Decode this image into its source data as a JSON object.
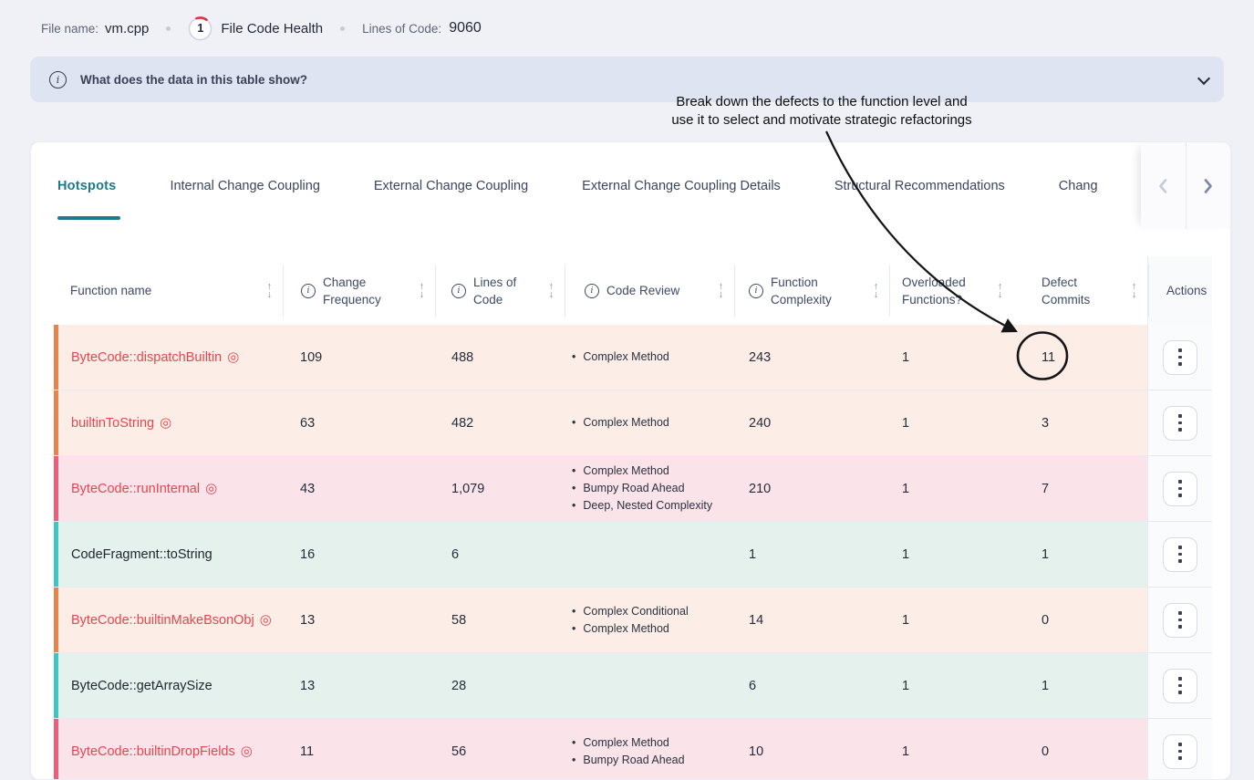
{
  "file_header": {
    "file_name_label": "File name:",
    "file_name": "vm.cpp",
    "health_score": "1",
    "health_label": "File Code Health",
    "loc_label": "Lines of Code:",
    "loc_value": "9060"
  },
  "banner": {
    "question": "What does the data in this table show?"
  },
  "annotation": {
    "line1": "Break down the defects to the function level and",
    "line2": "use it to select and motivate strategic refactorings",
    "circled_value": "11"
  },
  "tabs": {
    "items": [
      {
        "label": "Hotspots",
        "active": true
      },
      {
        "label": "Internal Change Coupling",
        "active": false
      },
      {
        "label": "External Change Coupling",
        "active": false
      },
      {
        "label": "External Change Coupling Details",
        "active": false
      },
      {
        "label": "Structural Recommendations",
        "active": false
      },
      {
        "label": "Chang",
        "active": false
      }
    ]
  },
  "table": {
    "columns": [
      {
        "label": "Function name",
        "info": false,
        "sort": true,
        "class": "hc-name"
      },
      {
        "label": "Change Frequency",
        "info": true,
        "sort": true,
        "class": "hc-cf",
        "label_width": 80
      },
      {
        "label": "Lines of Code",
        "info": true,
        "sort": true,
        "class": "hc-loc",
        "label_width": 62
      },
      {
        "label": "Code Review",
        "info": true,
        "sort": true,
        "class": "hc-cr"
      },
      {
        "label": "Function Complexity",
        "info": true,
        "sort": true,
        "class": "hc-fc",
        "label_width": 92
      },
      {
        "label": "Overloaded Functions?",
        "info": false,
        "sort": true,
        "class": "hc-of",
        "label_width": 92
      },
      {
        "label": "Defect Commits",
        "info": false,
        "sort": true,
        "class": "hc-dc",
        "label_width": 70
      },
      {
        "label": "Actions",
        "info": false,
        "sort": false,
        "class": "hc-act"
      }
    ],
    "rows": [
      {
        "name": "ByteCode::dispatchBuiltin",
        "target": true,
        "severity": "orange",
        "change_frequency": "109",
        "lines_of_code": "488",
        "code_review": [
          "Complex Method"
        ],
        "function_complexity": "243",
        "overloaded_functions": "1",
        "defect_commits": "11"
      },
      {
        "name": "builtinToString",
        "target": true,
        "severity": "orange",
        "change_frequency": "63",
        "lines_of_code": "482",
        "code_review": [
          "Complex Method"
        ],
        "function_complexity": "240",
        "overloaded_functions": "1",
        "defect_commits": "3"
      },
      {
        "name": "ByteCode::runInternal",
        "target": true,
        "severity": "rose",
        "change_frequency": "43",
        "lines_of_code": "1,079",
        "code_review": [
          "Complex Method",
          "Bumpy Road Ahead",
          "Deep, Nested Complexity"
        ],
        "function_complexity": "210",
        "overloaded_functions": "1",
        "defect_commits": "7"
      },
      {
        "name": "CodeFragment::toString",
        "target": false,
        "severity": "teal",
        "change_frequency": "16",
        "lines_of_code": "6",
        "code_review": [],
        "function_complexity": "1",
        "overloaded_functions": "1",
        "defect_commits": "1"
      },
      {
        "name": "ByteCode::builtinMakeBsonObj",
        "target": true,
        "severity": "orange",
        "change_frequency": "13",
        "lines_of_code": "58",
        "code_review": [
          "Complex Conditional",
          "Complex Method"
        ],
        "function_complexity": "14",
        "overloaded_functions": "1",
        "defect_commits": "0"
      },
      {
        "name": "ByteCode::getArraySize",
        "target": false,
        "severity": "teal",
        "change_frequency": "13",
        "lines_of_code": "28",
        "code_review": [],
        "function_complexity": "6",
        "overloaded_functions": "1",
        "defect_commits": "1"
      },
      {
        "name": "ByteCode::builtinDropFields",
        "target": true,
        "severity": "rose",
        "change_frequency": "11",
        "lines_of_code": "56",
        "code_review": [
          "Complex Method",
          "Bumpy Road Ahead"
        ],
        "function_complexity": "10",
        "overloaded_functions": "1",
        "defect_commits": "0"
      }
    ]
  },
  "severity_colors": {
    "orange": {
      "strip": "#E8824E",
      "bg": "#FCEDE7"
    },
    "rose": {
      "strip": "#EB6078",
      "bg": "#FAE3E9"
    },
    "teal": {
      "strip": "#3EC4C6",
      "bg": "#E4F1EC"
    }
  },
  "colors": {
    "accent_teal": "#1D7B8C",
    "hotspot_red": "#E4484E",
    "score_arc_red": "#D9363E",
    "banner_bg": "#DEE4F1",
    "annotation_ink": "#151515",
    "scroll_left_disabled": "#C4CAD8",
    "scroll_right_enabled": "#7A86A4"
  },
  "icons": {
    "info": "i",
    "target": "◎",
    "sort_up": "↑",
    "sort_down": "↓"
  }
}
